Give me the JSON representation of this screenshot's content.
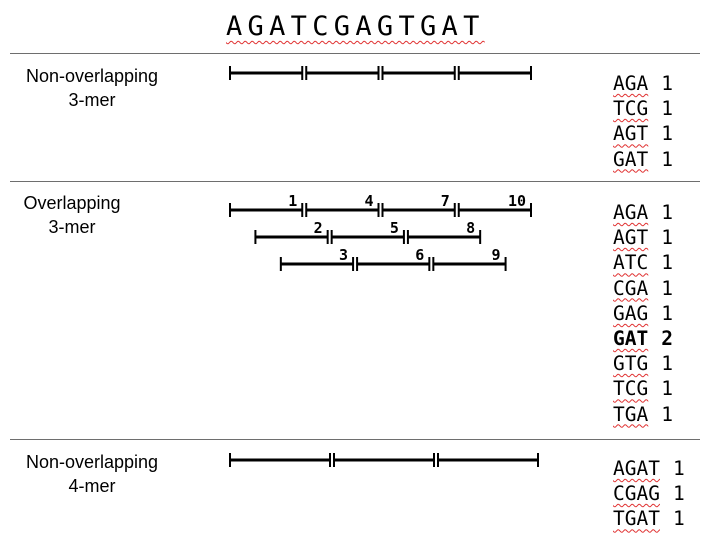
{
  "sequence": "AGATCGAGTGAT",
  "sections": [
    {
      "label_line1": "Non-overlapping",
      "label_line2": "3-mer",
      "segments": [
        {
          "start": 0,
          "length": 3,
          "row": 0
        },
        {
          "start": 3,
          "length": 3,
          "row": 0
        },
        {
          "start": 6,
          "length": 3,
          "row": 0
        },
        {
          "start": 9,
          "length": 3,
          "row": 0
        }
      ],
      "counts": [
        {
          "kmer": "AGA",
          "count": "1",
          "bold": false
        },
        {
          "kmer": "TCG",
          "count": "1",
          "bold": false
        },
        {
          "kmer": "AGT",
          "count": "1",
          "bold": false
        },
        {
          "kmer": "GAT",
          "count": "1",
          "bold": false
        }
      ]
    },
    {
      "label_line1": "Overlapping",
      "label_line2": "3-mer",
      "segments": [
        {
          "start": 0,
          "length": 3,
          "row": 0,
          "number": "1"
        },
        {
          "start": 3,
          "length": 3,
          "row": 0,
          "number": "4"
        },
        {
          "start": 6,
          "length": 3,
          "row": 0,
          "number": "7"
        },
        {
          "start": 9,
          "length": 3,
          "row": 0,
          "number": "10"
        },
        {
          "start": 1,
          "length": 3,
          "row": 1,
          "number": "2"
        },
        {
          "start": 4,
          "length": 3,
          "row": 1,
          "number": "5"
        },
        {
          "start": 7,
          "length": 3,
          "row": 1,
          "number": "8"
        },
        {
          "start": 2,
          "length": 3,
          "row": 2,
          "number": "3"
        },
        {
          "start": 5,
          "length": 3,
          "row": 2,
          "number": "6"
        },
        {
          "start": 8,
          "length": 3,
          "row": 2,
          "number": "9"
        }
      ],
      "counts": [
        {
          "kmer": "AGA",
          "count": "1",
          "bold": false
        },
        {
          "kmer": "AGT",
          "count": "1",
          "bold": false
        },
        {
          "kmer": "ATC",
          "count": "1",
          "bold": false
        },
        {
          "kmer": "CGA",
          "count": "1",
          "bold": false
        },
        {
          "kmer": "GAG",
          "count": "1",
          "bold": false
        },
        {
          "kmer": "GAT",
          "count": "2",
          "bold": true
        },
        {
          "kmer": "GTG",
          "count": "1",
          "bold": false
        },
        {
          "kmer": "TCG",
          "count": "1",
          "bold": false
        },
        {
          "kmer": "TGA",
          "count": "1",
          "bold": false
        }
      ]
    },
    {
      "label_line1": "Non-overlapping",
      "label_line2": "4-mer",
      "segments": [
        {
          "start": 0,
          "length": 4,
          "row": 0
        },
        {
          "start": 4,
          "length": 4,
          "row": 0
        },
        {
          "start": 8,
          "length": 4,
          "row": 0
        }
      ],
      "counts": [
        {
          "kmer": "AGAT",
          "count": "1",
          "bold": false
        },
        {
          "kmer": "CGAG",
          "count": "1",
          "bold": false
        },
        {
          "kmer": "TGAT",
          "count": "1",
          "bold": false
        }
      ]
    }
  ],
  "colors": {
    "line": "#000000",
    "divider": "#6e6e6e",
    "spellcheck": "#e03030"
  }
}
